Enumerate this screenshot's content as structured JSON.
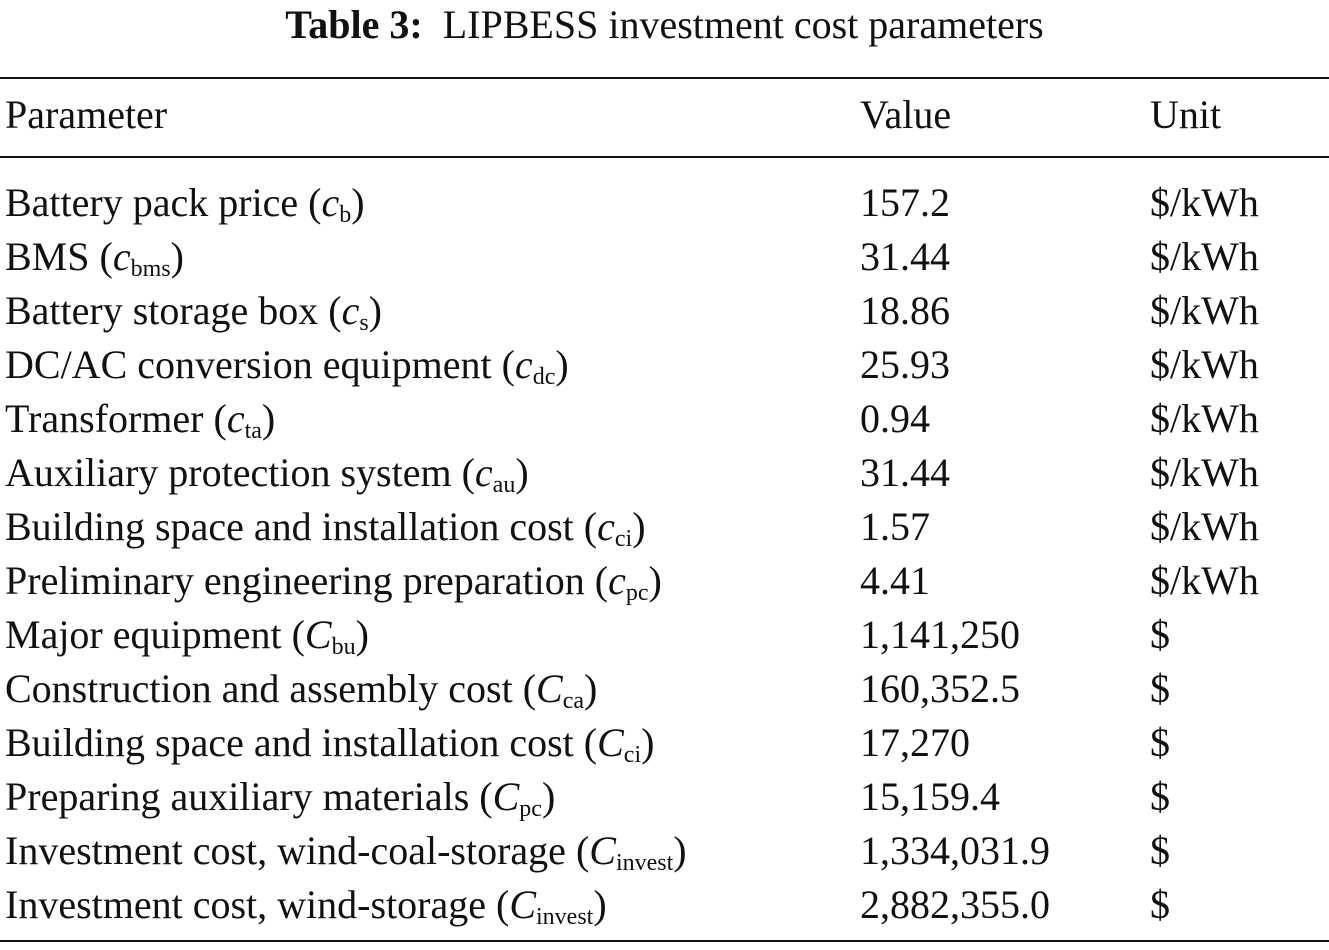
{
  "title": {
    "label": "Table 3:",
    "text": "LIPBESS investment cost parameters"
  },
  "headers": [
    "Parameter",
    "Value",
    "Unit"
  ],
  "rows": [
    {
      "name": "Battery pack price (",
      "var": "c",
      "sub": "b",
      "close": ")",
      "value": "157.2",
      "unit": "$/kWh"
    },
    {
      "name": "BMS (",
      "var": "c",
      "sub": "bms",
      "close": ")",
      "value": "31.44",
      "unit": "$/kWh"
    },
    {
      "name": "Battery storage box (",
      "var": "c",
      "sub": "s",
      "close": ")",
      "value": "18.86",
      "unit": "$/kWh"
    },
    {
      "name": "DC/AC conversion equipment (",
      "var": "c",
      "sub": "dc",
      "close": ")",
      "value": "25.93",
      "unit": "$/kWh"
    },
    {
      "name": "Transformer (",
      "var": "c",
      "sub": "ta",
      "close": ")",
      "value": "0.94",
      "unit": "$/kWh"
    },
    {
      "name": "Auxiliary protection system (",
      "var": "c",
      "sub": "au",
      "close": ")",
      "value": "31.44",
      "unit": "$/kWh"
    },
    {
      "name": "Building space and installation cost (",
      "var": "c",
      "sub": "ci",
      "close": ")",
      "value": "1.57",
      "unit": "$/kWh"
    },
    {
      "name": "Preliminary engineering preparation (",
      "var": "c",
      "sub": "pc",
      "close": ")",
      "value": "4.41",
      "unit": "$/kWh"
    },
    {
      "name": "Major equipment (",
      "var": "C",
      "sub": "bu",
      "close": ")",
      "value": "1,141,250",
      "unit": "$"
    },
    {
      "name": "Construction and assembly cost (",
      "var": "C",
      "sub": "ca",
      "close": ")",
      "value": "160,352.5",
      "unit": "$"
    },
    {
      "name": "Building space and installation cost (",
      "var": "C",
      "sub": "ci",
      "close": ")",
      "value": "17,270",
      "unit": "$"
    },
    {
      "name": "Preparing auxiliary materials (",
      "var": "C",
      "sub": "pc",
      "close": ")",
      "value": "15,159.4",
      "unit": "$"
    },
    {
      "name": "Investment cost, wind-coal-storage (",
      "var": "C",
      "sub": "invest",
      "close": ")",
      "value": "1,334,031.9",
      "unit": "$"
    },
    {
      "name": "Investment cost, wind-storage (",
      "var": "C",
      "sub": "invest",
      "close": ")",
      "value": "2,882,355.0",
      "unit": "$"
    }
  ]
}
